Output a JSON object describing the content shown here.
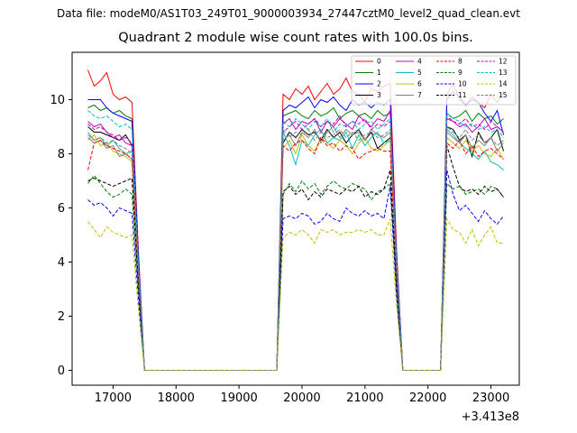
{
  "chart_data": {
    "type": "line",
    "suptitle": "Data file: modeM0/AS1T03_249T01_9000003934_27447cztM0_level2_quad_clean.evt",
    "title": "Quadrant 2 module wise count rates with 100.0s bins.",
    "xlabel": "",
    "ylabel": "",
    "offset_label": "+3.413e8",
    "xlim": [
      16350,
      23450
    ],
    "ylim": [
      -0.55,
      11.75
    ],
    "x_ticks": [
      17000,
      18000,
      19000,
      20000,
      21000,
      22000,
      23000
    ],
    "x_tick_labels": [
      "17000",
      "18000",
      "19000",
      "20000",
      "21000",
      "22000",
      "23000"
    ],
    "y_ticks": [
      0,
      2,
      4,
      6,
      8,
      10
    ],
    "y_tick_labels": [
      "0",
      "2",
      "4",
      "6",
      "8",
      "10"
    ],
    "legend_location": "upper right",
    "x": [
      16600,
      16700,
      16800,
      16900,
      17000,
      17100,
      17200,
      17300,
      17400,
      17500,
      17600,
      17700,
      17800,
      17900,
      18000,
      18100,
      18200,
      18300,
      18400,
      18500,
      18600,
      18700,
      18800,
      18900,
      19000,
      19100,
      19200,
      19300,
      19400,
      19500,
      19600,
      19700,
      19800,
      19900,
      20000,
      20100,
      20200,
      20300,
      20400,
      20500,
      20600,
      20700,
      20800,
      20900,
      21000,
      21100,
      21200,
      21300,
      21400,
      21500,
      21600,
      21700,
      21800,
      21900,
      22000,
      22100,
      22200,
      22300,
      22400,
      22500,
      22600,
      22700,
      22800,
      22900,
      23000,
      23100,
      23200
    ],
    "series": [
      {
        "name": "0",
        "color": "#ff0000",
        "dash": "solid",
        "values": [
          11.1,
          10.5,
          10.7,
          11.0,
          10.2,
          10.0,
          10.1,
          9.9,
          4.5,
          0,
          0,
          0,
          0,
          0,
          0,
          0,
          0,
          0,
          0,
          0,
          0,
          0,
          0,
          0,
          0,
          0,
          0,
          0,
          0,
          0,
          0,
          10.2,
          10.0,
          10.4,
          10.2,
          10.5,
          10.0,
          10.3,
          10.6,
          10.2,
          10.4,
          10.8,
          10.3,
          10.2,
          9.9,
          10.4,
          10.3,
          10.5,
          10.6,
          4.5,
          0,
          0,
          0,
          0,
          0,
          0,
          0,
          10.2,
          10.6,
          10.0,
          9.8,
          10.1,
          9.9,
          9.7,
          10.2,
          9.9,
          10.3
        ]
      },
      {
        "name": "1",
        "color": "#008000",
        "dash": "solid",
        "values": [
          9.7,
          9.8,
          9.6,
          9.7,
          9.5,
          9.6,
          9.4,
          9.3,
          4.0,
          0,
          0,
          0,
          0,
          0,
          0,
          0,
          0,
          0,
          0,
          0,
          0,
          0,
          0,
          0,
          0,
          0,
          0,
          0,
          0,
          0,
          0,
          9.4,
          9.5,
          9.6,
          9.4,
          9.3,
          9.6,
          9.4,
          9.5,
          9.7,
          9.3,
          9.5,
          9.6,
          9.4,
          9.5,
          9.3,
          9.6,
          9.4,
          9.5,
          4.0,
          0,
          0,
          0,
          0,
          0,
          0,
          0,
          9.5,
          9.3,
          9.4,
          9.6,
          9.2,
          9.5,
          9.3,
          9.4,
          9.1,
          9.3
        ]
      },
      {
        "name": "2",
        "color": "#0000ff",
        "dash": "solid",
        "values": [
          10.0,
          10.0,
          10.0,
          9.7,
          9.5,
          9.4,
          9.3,
          9.2,
          4.3,
          0,
          0,
          0,
          0,
          0,
          0,
          0,
          0,
          0,
          0,
          0,
          0,
          0,
          0,
          0,
          0,
          0,
          0,
          0,
          0,
          0,
          0,
          9.6,
          9.8,
          9.7,
          9.9,
          10.1,
          9.7,
          10.0,
          9.9,
          10.1,
          9.8,
          9.6,
          10.0,
          9.8,
          9.9,
          9.7,
          9.9,
          9.8,
          10.0,
          4.3,
          0,
          0,
          0,
          0,
          0,
          0,
          0,
          10.0,
          10.3,
          10.1,
          9.8,
          10.0,
          9.9,
          9.5,
          9.2,
          9.6,
          8.7
        ]
      },
      {
        "name": "3",
        "color": "#000000",
        "dash": "solid",
        "values": [
          9.0,
          8.8,
          8.8,
          8.7,
          8.6,
          8.5,
          8.7,
          8.3,
          3.8,
          0,
          0,
          0,
          0,
          0,
          0,
          0,
          0,
          0,
          0,
          0,
          0,
          0,
          0,
          0,
          0,
          0,
          0,
          0,
          0,
          0,
          0,
          8.4,
          8.8,
          8.6,
          8.9,
          8.7,
          8.8,
          8.5,
          8.9,
          8.6,
          8.8,
          8.4,
          8.7,
          8.9,
          8.5,
          8.8,
          8.2,
          8.4,
          8.6,
          3.8,
          0,
          0,
          0,
          0,
          0,
          0,
          0,
          9.0,
          8.9,
          8.5,
          8.7,
          7.9,
          8.8,
          8.4,
          8.6,
          8.9,
          8.1
        ]
      },
      {
        "name": "4",
        "color": "#c000c0",
        "dash": "solid",
        "values": [
          9.2,
          9.0,
          9.1,
          8.8,
          8.6,
          8.7,
          8.4,
          8.3,
          3.9,
          0,
          0,
          0,
          0,
          0,
          0,
          0,
          0,
          0,
          0,
          0,
          0,
          0,
          0,
          0,
          0,
          0,
          0,
          0,
          0,
          0,
          0,
          9.1,
          9.3,
          8.9,
          9.2,
          9.1,
          9.3,
          8.8,
          9.2,
          9.0,
          9.3,
          9.1,
          8.9,
          9.4,
          9.2,
          9.0,
          9.3,
          9.2,
          9.6,
          4.1,
          0,
          0,
          0,
          0,
          0,
          0,
          0,
          9.3,
          9.2,
          9.0,
          9.1,
          8.8,
          9.0,
          9.3,
          8.9,
          9.0,
          8.8
        ]
      },
      {
        "name": "5",
        "color": "#00bfbf",
        "dash": "solid",
        "values": [
          8.8,
          8.5,
          8.6,
          8.3,
          8.5,
          8.2,
          8.0,
          8.1,
          3.7,
          0,
          0,
          0,
          0,
          0,
          0,
          0,
          0,
          0,
          0,
          0,
          0,
          0,
          0,
          0,
          0,
          0,
          0,
          0,
          0,
          0,
          0,
          8.8,
          8.3,
          7.6,
          8.5,
          8.3,
          8.7,
          8.9,
          8.4,
          8.6,
          8.5,
          8.8,
          8.2,
          8.7,
          8.3,
          8.6,
          8.8,
          8.4,
          8.5,
          3.7,
          0,
          0,
          0,
          0,
          0,
          0,
          0,
          8.9,
          8.7,
          8.4,
          8.2,
          8.0,
          7.8,
          8.1,
          7.7,
          7.6,
          7.4
        ]
      },
      {
        "name": "6",
        "color": "#bfbf00",
        "dash": "solid",
        "values": [
          8.5,
          8.7,
          8.3,
          8.4,
          8.1,
          8.0,
          7.9,
          7.7,
          3.5,
          0,
          0,
          0,
          0,
          0,
          0,
          0,
          0,
          0,
          0,
          0,
          0,
          0,
          0,
          0,
          0,
          0,
          0,
          0,
          0,
          0,
          0,
          8.2,
          8.5,
          8.0,
          8.7,
          8.3,
          8.1,
          8.6,
          8.4,
          8.2,
          8.5,
          8.3,
          8.0,
          8.4,
          8.6,
          8.2,
          8.1,
          8.3,
          8.5,
          3.5,
          0,
          0,
          0,
          0,
          0,
          0,
          0,
          8.6,
          8.4,
          8.2,
          8.5,
          8.1,
          8.3,
          8.0,
          7.9,
          8.2,
          7.8
        ]
      },
      {
        "name": "7",
        "color": "#808080",
        "dash": "solid",
        "values": [
          8.6,
          8.4,
          8.5,
          8.2,
          8.3,
          7.9,
          8.0,
          7.8,
          3.6,
          0,
          0,
          0,
          0,
          0,
          0,
          0,
          0,
          0,
          0,
          0,
          0,
          0,
          0,
          0,
          0,
          0,
          0,
          0,
          0,
          0,
          0,
          8.5,
          8.7,
          8.3,
          8.8,
          8.6,
          8.9,
          8.4,
          8.8,
          9.0,
          8.6,
          8.9,
          8.7,
          8.8,
          8.5,
          8.9,
          8.7,
          8.6,
          8.8,
          3.7,
          0,
          0,
          0,
          0,
          0,
          0,
          0,
          8.8,
          8.6,
          8.4,
          8.7,
          8.2,
          8.5,
          8.3,
          8.6,
          8.1,
          8.4
        ]
      },
      {
        "name": "8",
        "color": "#ff0000",
        "dash": "dashed",
        "values": [
          7.4,
          8.4,
          8.5,
          8.3,
          8.2,
          8.1,
          8.0,
          7.8,
          3.5,
          0,
          0,
          0,
          0,
          0,
          0,
          0,
          0,
          0,
          0,
          0,
          0,
          0,
          0,
          0,
          0,
          0,
          0,
          0,
          0,
          0,
          0,
          8.3,
          8.1,
          8.4,
          8.5,
          8.2,
          8.0,
          8.6,
          8.3,
          8.4,
          8.1,
          8.3,
          8.2,
          7.8,
          8.0,
          8.1,
          8.2,
          8.1,
          8.1,
          3.5,
          0,
          0,
          0,
          0,
          0,
          0,
          0,
          8.4,
          8.2,
          8.5,
          8.0,
          8.3,
          7.9,
          8.1,
          8.2,
          8.0,
          7.8
        ]
      },
      {
        "name": "9",
        "color": "#008000",
        "dash": "dashed",
        "values": [
          6.9,
          7.2,
          6.9,
          6.6,
          6.4,
          6.5,
          6.7,
          6.5,
          3.1,
          0,
          0,
          0,
          0,
          0,
          0,
          0,
          0,
          0,
          0,
          0,
          0,
          0,
          0,
          0,
          0,
          0,
          0,
          0,
          0,
          0,
          0,
          6.5,
          6.9,
          6.6,
          7.0,
          6.7,
          6.9,
          6.5,
          6.8,
          7.0,
          6.8,
          6.7,
          6.9,
          6.8,
          6.7,
          6.3,
          6.6,
          6.7,
          6.9,
          3.1,
          0,
          0,
          0,
          0,
          0,
          0,
          0,
          6.9,
          6.7,
          6.8,
          6.5,
          6.6,
          6.7,
          6.5,
          6.8,
          6.7,
          6.4
        ]
      },
      {
        "name": "10",
        "color": "#0000ff",
        "dash": "dashed",
        "values": [
          6.3,
          6.1,
          6.2,
          6.0,
          5.7,
          6.0,
          5.9,
          5.8,
          2.7,
          0,
          0,
          0,
          0,
          0,
          0,
          0,
          0,
          0,
          0,
          0,
          0,
          0,
          0,
          0,
          0,
          0,
          0,
          0,
          0,
          0,
          0,
          5.6,
          5.7,
          5.6,
          5.8,
          5.7,
          5.4,
          5.5,
          5.8,
          5.6,
          5.5,
          6.0,
          5.8,
          5.7,
          5.9,
          5.7,
          5.8,
          5.6,
          6.8,
          2.8,
          0,
          0,
          0,
          0,
          0,
          0,
          0,
          7.4,
          6.5,
          5.9,
          6.1,
          5.8,
          5.5,
          5.9,
          5.6,
          5.4,
          5.7
        ]
      },
      {
        "name": "11",
        "color": "#000000",
        "dash": "dashed",
        "values": [
          7.0,
          7.1,
          7.0,
          6.9,
          6.8,
          6.9,
          7.0,
          7.1,
          3.2,
          0,
          0,
          0,
          0,
          0,
          0,
          0,
          0,
          0,
          0,
          0,
          0,
          0,
          0,
          0,
          0,
          0,
          0,
          0,
          0,
          0,
          0,
          6.6,
          6.8,
          6.5,
          6.7,
          6.3,
          6.6,
          6.4,
          6.7,
          6.6,
          6.5,
          6.7,
          6.6,
          6.8,
          6.4,
          6.6,
          6.5,
          6.7,
          7.4,
          3.2,
          0,
          0,
          0,
          0,
          0,
          0,
          0,
          8.3,
          7.5,
          6.8,
          6.6,
          6.7,
          6.5,
          6.8,
          6.6,
          6.7,
          6.4
        ]
      },
      {
        "name": "12",
        "color": "#c000c0",
        "dash": "dashed",
        "values": [
          9.1,
          8.9,
          9.0,
          8.8,
          8.7,
          8.5,
          8.6,
          8.4,
          3.9,
          0,
          0,
          0,
          0,
          0,
          0,
          0,
          0,
          0,
          0,
          0,
          0,
          0,
          0,
          0,
          0,
          0,
          0,
          0,
          0,
          0,
          0,
          8.8,
          9.0,
          9.2,
          8.9,
          9.1,
          9.3,
          9.0,
          9.2,
          9.1,
          9.4,
          9.0,
          9.2,
          9.1,
          9.3,
          8.9,
          9.1,
          9.0,
          9.2,
          4.0,
          0,
          0,
          0,
          0,
          0,
          0,
          0,
          9.4,
          9.2,
          9.1,
          9.3,
          9.0,
          9.1,
          8.9,
          9.2,
          9.0,
          8.8
        ]
      },
      {
        "name": "13",
        "color": "#00bfbf",
        "dash": "dashed",
        "values": [
          9.6,
          9.4,
          9.3,
          9.4,
          9.2,
          9.0,
          9.1,
          8.9,
          4.1,
          0,
          0,
          0,
          0,
          0,
          0,
          0,
          0,
          0,
          0,
          0,
          0,
          0,
          0,
          0,
          0,
          0,
          0,
          0,
          0,
          0,
          0,
          9.2,
          9.0,
          9.3,
          9.1,
          8.9,
          9.2,
          9.0,
          9.3,
          8.8,
          9.1,
          9.0,
          9.2,
          8.9,
          9.1,
          9.2,
          8.9,
          9.1,
          9.3,
          4.1,
          0,
          0,
          0,
          0,
          0,
          0,
          0,
          9.5,
          9.3,
          9.2,
          9.0,
          9.1,
          8.9,
          9.0,
          8.8,
          8.9,
          8.6
        ]
      },
      {
        "name": "14",
        "color": "#bfbf00",
        "dash": "dashed",
        "values": [
          5.5,
          5.2,
          4.9,
          5.3,
          5.1,
          5.0,
          4.9,
          5.0,
          2.3,
          0,
          0,
          0,
          0,
          0,
          0,
          0,
          0,
          0,
          0,
          0,
          0,
          0,
          0,
          0,
          0,
          0,
          0,
          0,
          0,
          0,
          0,
          4.9,
          5.1,
          5.0,
          5.2,
          5.0,
          4.7,
          5.2,
          5.1,
          5.2,
          5.0,
          5.1,
          5.1,
          5.2,
          5.1,
          5.2,
          5.0,
          5.0,
          5.6,
          2.4,
          0,
          0,
          0,
          0,
          0,
          0,
          0,
          5.6,
          5.2,
          5.1,
          4.7,
          5.2,
          4.6,
          5.0,
          5.3,
          4.7,
          4.7
        ]
      },
      {
        "name": "15",
        "color": "#808080",
        "dash": "dashed",
        "values": [
          8.7,
          8.5,
          8.6,
          8.4,
          8.5,
          8.3,
          8.2,
          8.0,
          3.7,
          0,
          0,
          0,
          0,
          0,
          0,
          0,
          0,
          0,
          0,
          0,
          0,
          0,
          0,
          0,
          0,
          0,
          0,
          0,
          0,
          0,
          0,
          8.9,
          8.6,
          8.8,
          8.7,
          8.9,
          8.5,
          8.8,
          8.6,
          8.7,
          8.9,
          8.6,
          8.8,
          8.5,
          8.7,
          8.8,
          8.6,
          8.7,
          8.9,
          3.8,
          0,
          0,
          0,
          0,
          0,
          0,
          0,
          9.0,
          8.8,
          8.6,
          8.9,
          8.5,
          8.7,
          8.4,
          8.6,
          8.3,
          8.5
        ]
      }
    ]
  }
}
